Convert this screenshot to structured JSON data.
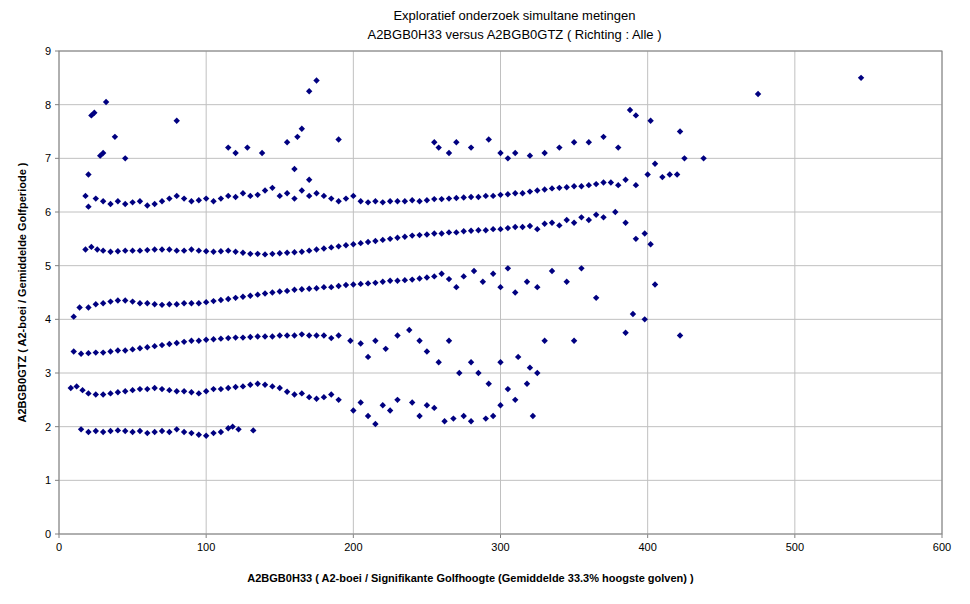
{
  "chart_data": {
    "type": "scatter",
    "title": "Exploratief onderzoek simultane metingen",
    "subtitle": "A2BGB0H33 versus A2BGB0GTZ ( Richting : Alle )",
    "x_label": "A2BGB0H33 ( A2-boei / Signifikante Golfhoogte (Gemiddelde 33.3% hoogste golven) )",
    "y_label": "A2BGB0GTZ ( A2-boei / Gemiddelde Golfperiode )",
    "color": "#000080",
    "marker": "diamond",
    "grid": true,
    "xlim": [
      0,
      600
    ],
    "xticks": [
      0,
      100,
      200,
      300,
      400,
      500,
      600
    ],
    "ylim": [
      0,
      9
    ],
    "yticks": [
      0,
      1,
      2,
      3,
      4,
      5,
      6,
      7,
      8,
      9
    ],
    "x": [
      15,
      20,
      25,
      30,
      35,
      40,
      45,
      50,
      55,
      60,
      65,
      70,
      75,
      80,
      85,
      90,
      95,
      100,
      105,
      110,
      115,
      118,
      122,
      132,
      8,
      12,
      16,
      20,
      25,
      30,
      35,
      40,
      45,
      50,
      55,
      60,
      65,
      70,
      75,
      80,
      85,
      90,
      95,
      100,
      105,
      110,
      115,
      120,
      125,
      130,
      135,
      140,
      145,
      150,
      155,
      160,
      165,
      170,
      175,
      180,
      185,
      190,
      200,
      205,
      210,
      215,
      220,
      225,
      230,
      240,
      245,
      250,
      255,
      262,
      268,
      275,
      280,
      290,
      295,
      300,
      310,
      318,
      322,
      325,
      10,
      15,
      20,
      25,
      30,
      35,
      40,
      45,
      50,
      55,
      60,
      65,
      70,
      75,
      80,
      85,
      90,
      95,
      100,
      105,
      110,
      115,
      120,
      125,
      130,
      135,
      140,
      145,
      150,
      155,
      160,
      165,
      170,
      175,
      180,
      185,
      190,
      198,
      205,
      210,
      215,
      222,
      230,
      238,
      245,
      250,
      258,
      265,
      272,
      280,
      285,
      292,
      300,
      305,
      312,
      320,
      330,
      350,
      10,
      14,
      20,
      25,
      30,
      35,
      40,
      45,
      50,
      55,
      60,
      65,
      70,
      75,
      80,
      85,
      90,
      95,
      100,
      105,
      110,
      115,
      120,
      125,
      130,
      135,
      140,
      145,
      150,
      155,
      160,
      165,
      170,
      175,
      180,
      185,
      190,
      195,
      200,
      205,
      210,
      215,
      220,
      225,
      230,
      235,
      240,
      245,
      250,
      255,
      260,
      265,
      270,
      275,
      282,
      288,
      295,
      300,
      305,
      310,
      318,
      325,
      335,
      345,
      355,
      365,
      385,
      390,
      398,
      405,
      422,
      18,
      22,
      26,
      30,
      35,
      40,
      45,
      50,
      55,
      60,
      65,
      70,
      75,
      80,
      85,
      90,
      95,
      100,
      105,
      110,
      115,
      120,
      125,
      130,
      135,
      140,
      145,
      150,
      155,
      160,
      165,
      170,
      175,
      180,
      185,
      190,
      195,
      200,
      205,
      210,
      215,
      220,
      225,
      230,
      235,
      240,
      245,
      250,
      255,
      260,
      265,
      270,
      275,
      280,
      285,
      290,
      295,
      300,
      305,
      310,
      315,
      320,
      325,
      330,
      335,
      340,
      345,
      350,
      355,
      360,
      365,
      370,
      378,
      385,
      392,
      398,
      402,
      18,
      20,
      25,
      30,
      35,
      40,
      45,
      50,
      55,
      60,
      65,
      70,
      75,
      80,
      85,
      90,
      95,
      100,
      105,
      110,
      115,
      120,
      125,
      130,
      135,
      140,
      145,
      150,
      155,
      160,
      165,
      170,
      175,
      180,
      185,
      190,
      195,
      200,
      205,
      210,
      215,
      220,
      225,
      230,
      235,
      240,
      245,
      250,
      255,
      260,
      265,
      270,
      275,
      280,
      285,
      290,
      295,
      300,
      305,
      310,
      315,
      320,
      325,
      330,
      335,
      340,
      345,
      350,
      355,
      360,
      365,
      370,
      375,
      380,
      385,
      392,
      400,
      410,
      415,
      420,
      20,
      22,
      24,
      28,
      30,
      32,
      38,
      45,
      80,
      115,
      120,
      128,
      138,
      155,
      160,
      162,
      165,
      170,
      170,
      175,
      190,
      255,
      258,
      265,
      270,
      280,
      292,
      300,
      305,
      310,
      320,
      330,
      340,
      350,
      360,
      370,
      380,
      388,
      392,
      402,
      405,
      422,
      425,
      438,
      475,
      545
    ],
    "values": [
      1.95,
      1.9,
      1.92,
      1.9,
      1.92,
      1.93,
      1.92,
      1.9,
      1.92,
      1.88,
      1.9,
      1.92,
      1.9,
      1.95,
      1.9,
      1.88,
      1.85,
      1.83,
      1.88,
      1.9,
      1.97,
      2.0,
      1.95,
      1.93,
      2.72,
      2.75,
      2.68,
      2.62,
      2.6,
      2.6,
      2.62,
      2.64,
      2.66,
      2.68,
      2.7,
      2.7,
      2.72,
      2.7,
      2.68,
      2.66,
      2.66,
      2.64,
      2.62,
      2.66,
      2.7,
      2.7,
      2.72,
      2.74,
      2.75,
      2.78,
      2.8,
      2.78,
      2.75,
      2.72,
      2.65,
      2.6,
      2.62,
      2.55,
      2.52,
      2.55,
      2.6,
      2.5,
      2.3,
      2.45,
      2.2,
      2.05,
      2.4,
      2.3,
      2.5,
      2.45,
      2.2,
      2.4,
      2.35,
      2.1,
      2.15,
      2.2,
      2.1,
      2.15,
      2.2,
      2.4,
      2.5,
      2.8,
      2.2,
      3.0,
      3.4,
      3.36,
      3.37,
      3.38,
      3.38,
      3.4,
      3.42,
      3.42,
      3.44,
      3.46,
      3.48,
      3.5,
      3.52,
      3.54,
      3.56,
      3.58,
      3.6,
      3.6,
      3.62,
      3.63,
      3.64,
      3.65,
      3.66,
      3.66,
      3.67,
      3.68,
      3.68,
      3.68,
      3.7,
      3.7,
      3.7,
      3.72,
      3.7,
      3.7,
      3.7,
      3.65,
      3.7,
      3.6,
      3.55,
      3.3,
      3.6,
      3.45,
      3.7,
      3.8,
      3.6,
      3.4,
      3.2,
      3.6,
      3.0,
      3.2,
      3.0,
      2.8,
      3.2,
      2.7,
      3.3,
      3.1,
      3.6,
      3.6,
      4.05,
      4.22,
      4.22,
      4.28,
      4.3,
      4.33,
      4.35,
      4.35,
      4.33,
      4.3,
      4.3,
      4.28,
      4.27,
      4.28,
      4.28,
      4.3,
      4.3,
      4.3,
      4.32,
      4.34,
      4.36,
      4.38,
      4.4,
      4.42,
      4.44,
      4.46,
      4.48,
      4.5,
      4.52,
      4.53,
      4.55,
      4.56,
      4.57,
      4.58,
      4.6,
      4.6,
      4.62,
      4.64,
      4.65,
      4.66,
      4.67,
      4.68,
      4.7,
      4.72,
      4.72,
      4.73,
      4.74,
      4.76,
      4.78,
      4.8,
      4.85,
      4.75,
      4.6,
      4.8,
      4.9,
      4.7,
      4.85,
      4.6,
      4.95,
      4.5,
      4.7,
      4.6,
      4.9,
      4.7,
      4.95,
      4.4,
      3.75,
      4.1,
      4.0,
      4.65,
      3.7,
      5.3,
      5.35,
      5.3,
      5.28,
      5.26,
      5.27,
      5.28,
      5.28,
      5.28,
      5.29,
      5.3,
      5.3,
      5.3,
      5.28,
      5.28,
      5.3,
      5.28,
      5.27,
      5.26,
      5.27,
      5.28,
      5.26,
      5.24,
      5.22,
      5.22,
      5.21,
      5.22,
      5.23,
      5.24,
      5.25,
      5.26,
      5.28,
      5.3,
      5.32,
      5.34,
      5.36,
      5.38,
      5.4,
      5.42,
      5.44,
      5.46,
      5.48,
      5.5,
      5.52,
      5.54,
      5.56,
      5.57,
      5.58,
      5.6,
      5.6,
      5.62,
      5.62,
      5.64,
      5.65,
      5.66,
      5.66,
      5.68,
      5.68,
      5.7,
      5.72,
      5.72,
      5.74,
      5.68,
      5.78,
      5.8,
      5.75,
      5.85,
      5.8,
      5.9,
      5.85,
      5.95,
      5.9,
      6.0,
      5.8,
      5.5,
      5.6,
      5.4,
      6.3,
      6.1,
      6.25,
      6.2,
      6.15,
      6.2,
      6.15,
      6.18,
      6.2,
      6.12,
      6.15,
      6.2,
      6.25,
      6.3,
      6.25,
      6.2,
      6.22,
      6.25,
      6.2,
      6.25,
      6.3,
      6.28,
      6.35,
      6.3,
      6.32,
      6.4,
      6.45,
      6.3,
      6.35,
      6.25,
      6.4,
      6.3,
      6.35,
      6.3,
      6.25,
      6.2,
      6.25,
      6.3,
      6.2,
      6.18,
      6.2,
      6.18,
      6.2,
      6.2,
      6.2,
      6.22,
      6.2,
      6.22,
      6.24,
      6.24,
      6.25,
      6.26,
      6.27,
      6.28,
      6.28,
      6.3,
      6.3,
      6.32,
      6.33,
      6.35,
      6.35,
      6.38,
      6.4,
      6.42,
      6.44,
      6.45,
      6.46,
      6.48,
      6.48,
      6.5,
      6.52,
      6.55,
      6.55,
      6.5,
      6.6,
      6.5,
      6.7,
      6.65,
      6.7,
      6.7,
      6.7,
      7.8,
      7.85,
      7.05,
      7.1,
      8.05,
      7.4,
      7.0,
      7.7,
      7.2,
      7.1,
      7.2,
      7.1,
      7.3,
      6.8,
      7.4,
      7.55,
      8.25,
      6.6,
      8.45,
      7.35,
      7.3,
      7.2,
      7.1,
      7.3,
      7.2,
      7.35,
      7.1,
      7.0,
      7.1,
      7.05,
      7.1,
      7.2,
      7.3,
      7.3,
      7.4,
      7.2,
      7.9,
      7.8,
      7.7,
      6.9,
      7.5,
      7.0,
      7.0,
      8.2,
      8.5
    ]
  }
}
